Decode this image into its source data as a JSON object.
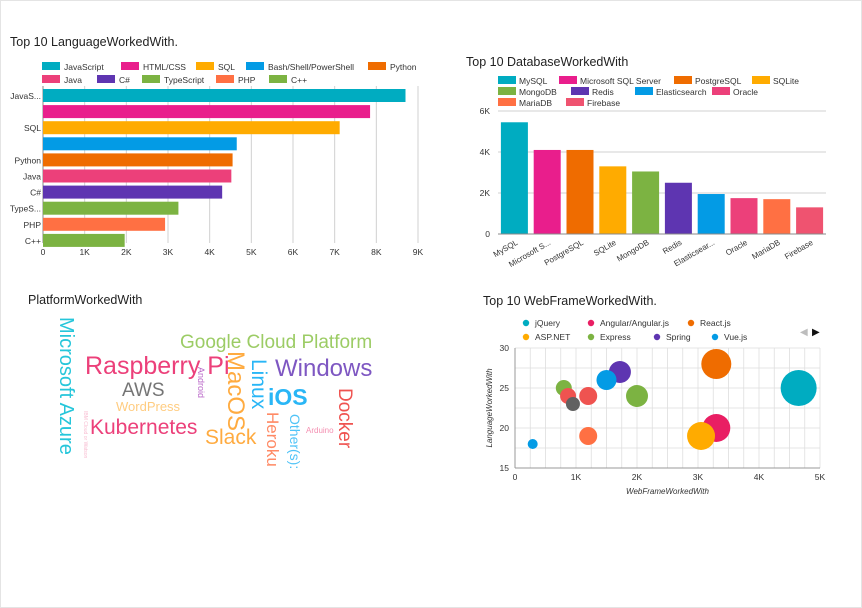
{
  "chart_data": [
    {
      "type": "bar",
      "orientation": "horizontal",
      "title": "Top 10 LanguageWorkedWith.",
      "categories": [
        "JavaScript",
        "HTML/CSS",
        "SQL",
        "Bash/Shell/PowerShell",
        "Python",
        "Java",
        "C#",
        "TypeScript",
        "PHP",
        "C++"
      ],
      "category_tick_labels": [
        "JavaS...",
        "",
        "SQL",
        "",
        "Python",
        "Java",
        "C#",
        "TypeS...",
        "PHP",
        "C++"
      ],
      "values": [
        8700,
        7850,
        7120,
        4650,
        4550,
        4520,
        4300,
        3250,
        2930,
        1960
      ],
      "colors": [
        "#00acc1",
        "#e91e8c",
        "#ffab00",
        "#039be5",
        "#ef6c00",
        "#ec407a",
        "#5e35b1",
        "#7cb342",
        "#ff7043",
        "#7cb342"
      ],
      "xlim": [
        0,
        9000
      ],
      "xticks": [
        "0",
        "1K",
        "2K",
        "3K",
        "4K",
        "5K",
        "6K",
        "7K",
        "8K",
        "9K"
      ],
      "legend_position": "top"
    },
    {
      "type": "bar",
      "title": "Top 10 DatabaseWorkedWith",
      "categories": [
        "MySQL",
        "Microsoft SQL Server",
        "PostgreSQL",
        "SQLite",
        "MongoDB",
        "Redis",
        "Elasticsearch",
        "Oracle",
        "MariaDB",
        "Firebase"
      ],
      "category_tick_labels": [
        "MySQL",
        "Microsoft S...",
        "PostgreSQL",
        "SQLite",
        "MongoDB",
        "Redis",
        "Elasticsear...",
        "Oracle",
        "MariaDB",
        "Firebase"
      ],
      "values": [
        5450,
        4100,
        4100,
        3300,
        3050,
        2500,
        1950,
        1750,
        1700,
        1300
      ],
      "colors": [
        "#00acc1",
        "#e91e8c",
        "#ef6c00",
        "#ffab00",
        "#7cb342",
        "#5e35b1",
        "#039be5",
        "#ec407a",
        "#ff7043",
        "#ef5370"
      ],
      "ylim": [
        0,
        6000
      ],
      "yticks": [
        "0",
        "2K",
        "4K",
        "6K"
      ],
      "legend_position": "top"
    },
    {
      "type": "scatter",
      "title": "Top 10 WebFrameWorkedWith.",
      "xlabel": "WebFrameWorkedWith",
      "ylabel": "LanguageWorkedWith",
      "xlim": [
        0,
        5000
      ],
      "ylim": [
        15,
        30
      ],
      "xticks": [
        "0",
        "1K",
        "2K",
        "3K",
        "4K",
        "5K"
      ],
      "yticks": [
        "15",
        "20",
        "25",
        "30"
      ],
      "legend_position": "top",
      "series": [
        {
          "name": "jQuery",
          "color": "#00acc1",
          "points": [
            {
              "x": 4650,
              "y": 25,
              "size": 18
            }
          ]
        },
        {
          "name": "Angular/Angular.js",
          "color": "#e91e63",
          "points": [
            {
              "x": 3300,
              "y": 20,
              "size": 14
            }
          ]
        },
        {
          "name": "React.js",
          "color": "#ef6c00",
          "points": [
            {
              "x": 3300,
              "y": 28,
              "size": 15
            }
          ]
        },
        {
          "name": "ASP.NET",
          "color": "#ffab00",
          "points": [
            {
              "x": 3050,
              "y": 19,
              "size": 14
            }
          ]
        },
        {
          "name": "Express",
          "color": "#7cb342",
          "points": [
            {
              "x": 2000,
              "y": 24,
              "size": 11
            },
            {
              "x": 800,
              "y": 25,
              "size": 8
            }
          ]
        },
        {
          "name": "Spring",
          "color": "#5e35b1",
          "points": [
            {
              "x": 1720,
              "y": 27,
              "size": 11
            }
          ]
        },
        {
          "name": "Vue.js",
          "color": "#039be5",
          "points": [
            {
              "x": 1500,
              "y": 26,
              "size": 10
            },
            {
              "x": 290,
              "y": 18,
              "size": 5
            }
          ]
        },
        {
          "name": "",
          "color": "#ef5350",
          "points": [
            {
              "x": 1200,
              "y": 24,
              "size": 9
            },
            {
              "x": 870,
              "y": 24,
              "size": 8
            }
          ]
        },
        {
          "name": "",
          "color": "#ff7043",
          "points": [
            {
              "x": 1200,
              "y": 19,
              "size": 9
            }
          ]
        },
        {
          "name": "",
          "color": "#616161",
          "points": [
            {
              "x": 950,
              "y": 23,
              "size": 7
            }
          ]
        }
      ]
    },
    {
      "type": "wordcloud",
      "title": "PlatformWorkedWith",
      "words": [
        {
          "text": "Microsoft Azure",
          "color": "#26c6da"
        },
        {
          "text": "Google Cloud Platform",
          "color": "#9ccc65"
        },
        {
          "text": "Raspberry Pi",
          "color": "#ec407a"
        },
        {
          "text": "MacOS",
          "color": "#ffab40"
        },
        {
          "text": "Linux",
          "color": "#29b6f6"
        },
        {
          "text": "Windows",
          "color": "#7e57c2"
        },
        {
          "text": "AWS",
          "color": "#757575"
        },
        {
          "text": "Android",
          "color": "#ba68c8"
        },
        {
          "text": "WordPress",
          "color": "#ffcc80"
        },
        {
          "text": "iOS",
          "color": "#29b6f6"
        },
        {
          "text": "Docker",
          "color": "#ef5350"
        },
        {
          "text": "Kubernetes",
          "color": "#ec407a"
        },
        {
          "text": "Slack",
          "color": "#ffab40"
        },
        {
          "text": "Heroku",
          "color": "#ff8a65"
        },
        {
          "text": "Other(s):",
          "color": "#4fc3f7"
        },
        {
          "text": "Arduino",
          "color": "#f48fb1"
        },
        {
          "text": "IBM Cloud or Watson",
          "color": "#f8bbd0"
        }
      ]
    }
  ],
  "scatter_nav": {
    "prev": "◀",
    "next": "▶"
  }
}
